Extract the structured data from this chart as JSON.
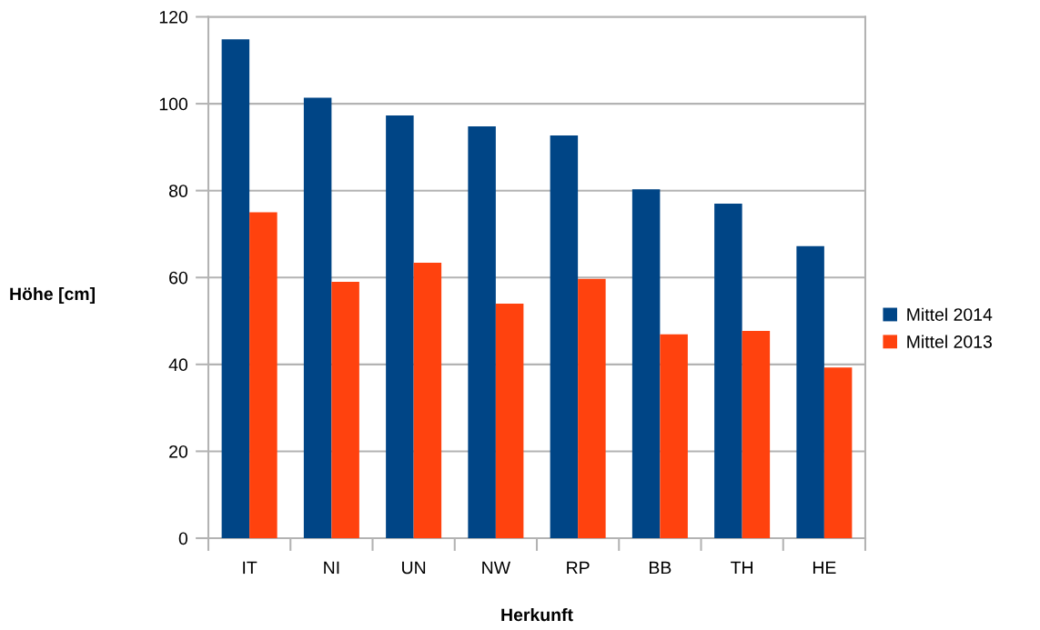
{
  "chart_data": {
    "type": "bar",
    "xlabel": "Herkunft",
    "ylabel": "Höhe [cm]",
    "categories": [
      "IT",
      "NI",
      "UN",
      "NW",
      "RP",
      "BB",
      "TH",
      "HE"
    ],
    "series": [
      {
        "name": "Mittel 2014",
        "color": "#004586",
        "values": [
          114.8,
          101.4,
          97.3,
          94.8,
          92.7,
          80.3,
          77.0,
          67.2
        ]
      },
      {
        "name": "Mittel 2013",
        "color": "#ff420e",
        "values": [
          75.0,
          59.0,
          63.4,
          54.0,
          59.7,
          46.9,
          47.7,
          39.3
        ]
      }
    ],
    "ylim": [
      0,
      120
    ],
    "yticks": [
      0,
      20,
      40,
      60,
      80,
      100,
      120
    ],
    "grid": "y",
    "legend": "right"
  }
}
